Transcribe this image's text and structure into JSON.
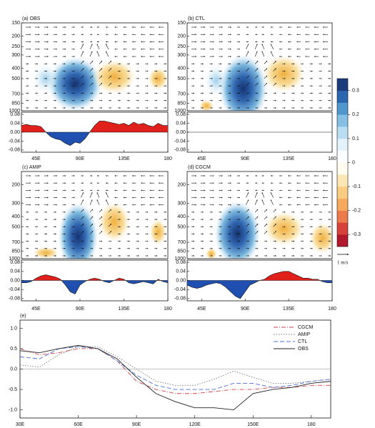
{
  "chart_data": [
    {
      "type": "profile",
      "title": "(a) OBS",
      "xlim": [
        30,
        180
      ],
      "xticks": [
        {
          "value": 45,
          "label": "45E"
        },
        {
          "value": 90,
          "label": "90E"
        },
        {
          "value": 135,
          "label": "135E"
        },
        180
      ],
      "ylim": [
        1000,
        150
      ],
      "log": true,
      "yticks": [
        150,
        200,
        250,
        300,
        400,
        500,
        700,
        850,
        1000
      ],
      "area": {
        "ylim": [
          -0.09,
          0.09
        ],
        "yticks": [
          0.08,
          0.04,
          {
            "value": 0,
            "label": "0.00"
          },
          -0.04,
          -0.08
        ],
        "x": [
          30,
          35,
          40,
          45,
          50,
          55,
          60,
          65,
          70,
          75,
          80,
          85,
          90,
          95,
          100,
          105,
          110,
          115,
          120,
          125,
          130,
          135,
          140,
          145,
          150,
          155,
          160,
          165,
          170,
          175,
          180
        ],
        "values": [
          0.03,
          0.035,
          0.03,
          0.03,
          0.025,
          0.0,
          -0.02,
          -0.03,
          -0.035,
          -0.05,
          -0.06,
          -0.045,
          -0.05,
          -0.03,
          0.0,
          0.03,
          0.05,
          0.05,
          0.045,
          0.04,
          0.035,
          0.04,
          0.03,
          0.045,
          0.035,
          0.04,
          0.03,
          0.025,
          0.04,
          0.03,
          0.03
        ],
        "colors": [
          "#e0201b",
          "#1f4fb0"
        ]
      }
    },
    {
      "type": "profile",
      "title": "(b) CTL",
      "xlim": [
        30,
        180
      ],
      "xticks": [
        {
          "value": 45,
          "label": "45E"
        },
        {
          "value": 90,
          "label": "90E"
        },
        {
          "value": 135,
          "label": "135E"
        },
        180
      ],
      "ylim": [
        1000,
        150
      ],
      "log": true,
      "yticks": [
        150,
        200,
        250,
        300,
        400,
        500,
        700,
        850,
        1000
      ],
      "area": {
        "ylim": [
          -0.09,
          0.09
        ],
        "yticks": [
          0.08,
          0.04,
          {
            "value": 0,
            "label": "0.00"
          },
          -0.04,
          -0.08
        ]
      }
    },
    {
      "type": "profile",
      "title": "(c) AMIP",
      "xlim": [
        30,
        180
      ],
      "xticks": [
        {
          "value": 45,
          "label": "45E"
        },
        {
          "value": 90,
          "label": "90E"
        },
        {
          "value": 135,
          "label": "135E"
        },
        180
      ],
      "ylim": [
        1000,
        150
      ],
      "log": true,
      "yticks": [
        200,
        300,
        400,
        500,
        700,
        850,
        1000
      ],
      "area": {
        "ylim": [
          -0.09,
          0.09
        ],
        "yticks": [
          0.08,
          0.04,
          {
            "value": 0,
            "label": "0.00"
          },
          -0.04,
          -0.08
        ],
        "x": [
          30,
          35,
          40,
          45,
          50,
          55,
          60,
          65,
          70,
          75,
          80,
          85,
          90,
          95,
          100,
          105,
          110,
          115,
          120,
          125,
          130,
          135,
          140,
          145,
          150,
          155,
          160,
          165,
          170,
          175,
          180
        ],
        "values": [
          -0.01,
          -0.01,
          -0.005,
          0.01,
          0.02,
          0.025,
          0.02,
          0.015,
          0.005,
          -0.02,
          -0.05,
          -0.06,
          -0.02,
          -0.005,
          0.005,
          0.01,
          0.005,
          -0.005,
          -0.01,
          0.0,
          0.01,
          0.005,
          -0.01,
          -0.015,
          -0.01,
          -0.005,
          -0.01,
          -0.015,
          0.005,
          -0.005,
          -0.01
        ],
        "colors": [
          "#e0201b",
          "#1f4fb0"
        ]
      }
    },
    {
      "type": "profile",
      "title": "(d) CGCM",
      "xlim": [
        30,
        180
      ],
      "xticks": [
        {
          "value": 45,
          "label": "45E"
        },
        {
          "value": 90,
          "label": "90E"
        },
        {
          "value": 135,
          "label": "135E"
        },
        180
      ],
      "ylim": [
        1000,
        150
      ],
      "log": true,
      "yticks": [
        200,
        300,
        400,
        500,
        700,
        850,
        1000
      ],
      "area": {
        "ylim": [
          -0.09,
          0.09
        ],
        "yticks": [
          0.08,
          0.04,
          {
            "value": 0,
            "label": "0.00"
          },
          -0.04,
          -0.08
        ],
        "x": [
          30,
          35,
          40,
          45,
          50,
          55,
          60,
          65,
          70,
          75,
          80,
          85,
          90,
          95,
          100,
          105,
          110,
          115,
          120,
          125,
          130,
          135,
          140,
          145,
          150,
          155,
          160,
          165,
          170,
          175,
          180
        ],
        "values": [
          -0.02,
          -0.03,
          -0.035,
          -0.03,
          -0.02,
          -0.015,
          -0.01,
          -0.015,
          -0.03,
          -0.05,
          -0.07,
          -0.08,
          -0.05,
          -0.02,
          -0.01,
          0.0,
          0.005,
          0.02,
          0.03,
          0.035,
          0.04,
          0.04,
          0.03,
          0.02,
          0.01,
          0.01,
          0.005,
          0.005,
          -0.005,
          -0.01,
          -0.01
        ],
        "colors": [
          "#e0201b",
          "#1f4fb0"
        ]
      }
    },
    {
      "type": "colorbar",
      "clim": [
        -0.35,
        0.35
      ],
      "ticks": [
        0.3,
        0.2,
        0.1,
        0,
        -0.1,
        -0.2,
        -0.3
      ],
      "label": "1 m/s"
    },
    {
      "type": "line",
      "title": "(e)",
      "xlim": [
        30,
        190
      ],
      "ylim": [
        -1.2,
        1.2
      ],
      "xticks": [
        {
          "value": 30,
          "label": "30E"
        },
        {
          "value": 60,
          "label": "60E"
        },
        {
          "value": 90,
          "label": "90E"
        },
        {
          "value": 120,
          "label": "120E"
        },
        {
          "value": 150,
          "label": "150E"
        },
        180
      ],
      "yticks": [
        {
          "value": 1,
          "label": "1.0"
        },
        0.5,
        {
          "value": 0,
          "label": "0.0"
        },
        -0.5,
        {
          "value": -1,
          "label": "-1.0"
        }
      ],
      "legend": "upper right",
      "x": [
        30,
        40,
        50,
        60,
        70,
        80,
        90,
        100,
        110,
        120,
        130,
        140,
        150,
        160,
        170,
        180,
        190
      ],
      "series": [
        {
          "name": "CGCM",
          "color": "#d0404a",
          "dash": "6 2 1 2",
          "values": [
            0.5,
            0.35,
            0.4,
            0.5,
            0.5,
            0.2,
            -0.3,
            -0.5,
            -0.6,
            -0.6,
            -0.55,
            -0.5,
            -0.5,
            -0.45,
            -0.45,
            -0.4,
            -0.4
          ]
        },
        {
          "name": "AMIP",
          "color": "#777777",
          "dash": "1.5 2",
          "values": [
            0.1,
            0.05,
            0.35,
            0.55,
            0.55,
            0.3,
            0,
            -0.3,
            -0.4,
            -0.4,
            -0.25,
            -0.05,
            -0.2,
            -0.35,
            -0.35,
            -0.3,
            -0.25
          ]
        },
        {
          "name": "CTL",
          "color": "#4a6fd8",
          "dash": "6 3",
          "values": [
            0.3,
            0.25,
            0.5,
            0.55,
            0.5,
            0.2,
            -0.15,
            -0.4,
            -0.5,
            -0.5,
            -0.5,
            -0.35,
            -0.35,
            -0.45,
            -0.4,
            -0.3,
            -0.25
          ]
        },
        {
          "name": "OBS",
          "color": "#222222",
          "dash": "",
          "values": [
            0.45,
            0.4,
            0.5,
            0.58,
            0.5,
            0.25,
            -0.2,
            -0.6,
            -0.8,
            -0.95,
            -0.95,
            -1.0,
            -0.6,
            -0.5,
            -0.45,
            -0.35,
            -0.3
          ]
        }
      ]
    }
  ]
}
